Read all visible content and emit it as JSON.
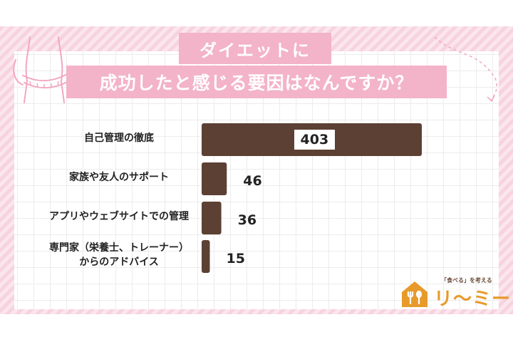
{
  "title_line1": "ダイエットに",
  "title_line2": "成功したと感じる要因はなんですか？",
  "chart_data": {
    "type": "bar",
    "orientation": "horizontal",
    "categories": [
      "自己管理の徹底",
      "家族や友人のサポート",
      "アプリやウェブサイトでの管理",
      "専門家（栄養士、トレーナー）からのアドバイス"
    ],
    "category_lines": [
      [
        "自己管理の徹底"
      ],
      [
        "家族や友人のサポート"
      ],
      [
        "アプリやウェブサイトでの管理"
      ],
      [
        "専門家（栄養士、トレーナー）",
        "からのアドバイス"
      ]
    ],
    "values": [
      403,
      46,
      36,
      15
    ],
    "value_labels": [
      "403",
      "46",
      "36",
      "15"
    ],
    "xlim": [
      0,
      403
    ],
    "bar_color": "#5c4033",
    "grid": false
  },
  "logo": {
    "tagline": "「食べる」を考える",
    "wordmark": "リ〜ミー",
    "icon": "house-fork-spoon-icon",
    "color": "#e79a2a"
  },
  "decoration": {
    "illustration": "measuring-tape-waist-icon",
    "color": "#f2a7bf"
  }
}
